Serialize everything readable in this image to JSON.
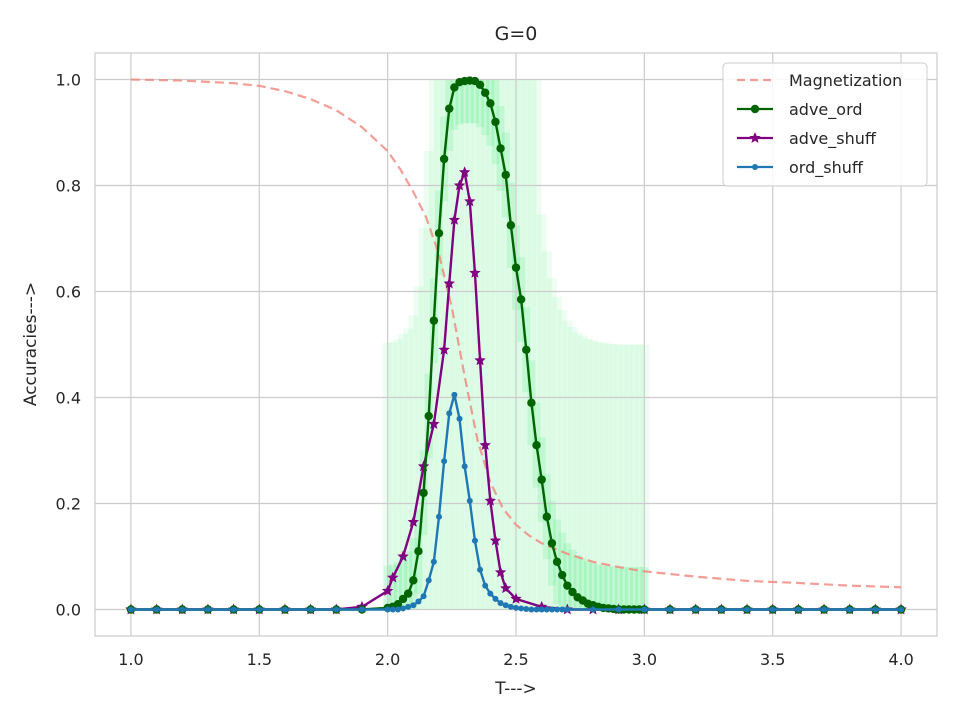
{
  "chart_data": {
    "type": "line",
    "title": "G=0",
    "xlabel": "T--->",
    "ylabel": "Accuracies--->",
    "xlim": [
      0.86,
      4.14
    ],
    "ylim": [
      -0.05,
      1.05
    ],
    "xticks": [
      1.0,
      1.5,
      2.0,
      2.5,
      3.0,
      3.5,
      4.0
    ],
    "xtick_labels": [
      "1.0",
      "1.5",
      "2.0",
      "2.5",
      "3.0",
      "3.5",
      "4.0"
    ],
    "yticks": [
      0.0,
      0.2,
      0.4,
      0.6,
      0.8,
      1.0
    ],
    "ytick_labels": [
      "0.0",
      "0.2",
      "0.4",
      "0.6",
      "0.8",
      "1.0"
    ],
    "grid": true,
    "legend_position": "top-right",
    "series": [
      {
        "name": "Magnetization",
        "color": "#f0857a",
        "style": "dashed",
        "marker": "none",
        "x": [
          1.0,
          1.2,
          1.4,
          1.5,
          1.6,
          1.7,
          1.8,
          1.9,
          2.0,
          2.05,
          2.1,
          2.15,
          2.2,
          2.25,
          2.3,
          2.35,
          2.4,
          2.45,
          2.5,
          2.55,
          2.6,
          2.7,
          2.8,
          2.9,
          3.0,
          3.2,
          3.4,
          3.6,
          3.8,
          4.0
        ],
        "y": [
          1.0,
          0.998,
          0.993,
          0.988,
          0.978,
          0.963,
          0.942,
          0.91,
          0.865,
          0.83,
          0.788,
          0.74,
          0.67,
          0.57,
          0.44,
          0.32,
          0.24,
          0.19,
          0.16,
          0.14,
          0.125,
          0.105,
          0.09,
          0.08,
          0.072,
          0.062,
          0.054,
          0.05,
          0.045,
          0.042
        ]
      },
      {
        "name": "adve_ord",
        "color": "#006400",
        "style": "solid",
        "marker": "circle",
        "x": [
          1.0,
          1.1,
          1.2,
          1.3,
          1.4,
          1.5,
          1.6,
          1.7,
          1.8,
          1.9,
          2.0,
          2.02,
          2.04,
          2.06,
          2.08,
          2.1,
          2.12,
          2.14,
          2.16,
          2.18,
          2.2,
          2.22,
          2.24,
          2.26,
          2.28,
          2.3,
          2.32,
          2.34,
          2.36,
          2.38,
          2.4,
          2.42,
          2.44,
          2.46,
          2.48,
          2.5,
          2.52,
          2.54,
          2.56,
          2.58,
          2.6,
          2.62,
          2.64,
          2.66,
          2.68,
          2.7,
          2.72,
          2.74,
          2.76,
          2.78,
          2.8,
          2.82,
          2.84,
          2.86,
          2.88,
          2.9,
          2.92,
          2.94,
          2.96,
          2.98,
          3.0,
          3.1,
          3.2,
          3.3,
          3.4,
          3.5,
          3.6,
          3.7,
          3.8,
          3.9,
          4.0
        ],
        "y": [
          0.0,
          0.0,
          0.0,
          0.0,
          0.0,
          0.0,
          0.0,
          0.0,
          0.0,
          0.0,
          0.003,
          0.005,
          0.01,
          0.02,
          0.03,
          0.055,
          0.11,
          0.22,
          0.365,
          0.545,
          0.71,
          0.85,
          0.945,
          0.985,
          0.995,
          0.997,
          0.998,
          0.997,
          0.99,
          0.975,
          0.955,
          0.92,
          0.87,
          0.82,
          0.725,
          0.645,
          0.585,
          0.49,
          0.39,
          0.31,
          0.245,
          0.175,
          0.125,
          0.09,
          0.065,
          0.045,
          0.033,
          0.023,
          0.017,
          0.011,
          0.008,
          0.005,
          0.003,
          0.002,
          0.001,
          0.0,
          0.0,
          0.0,
          0.0,
          0.0,
          0.0,
          0.0,
          0.0,
          0.0,
          0.0,
          0.0,
          0.0,
          0.0,
          0.0,
          0.0,
          0.0
        ]
      },
      {
        "name": "adve_shuff",
        "color": "#800080",
        "style": "solid",
        "marker": "star",
        "x": [
          1.0,
          1.1,
          1.2,
          1.3,
          1.4,
          1.5,
          1.6,
          1.7,
          1.8,
          1.9,
          2.0,
          2.02,
          2.06,
          2.1,
          2.14,
          2.18,
          2.22,
          2.24,
          2.26,
          2.28,
          2.3,
          2.32,
          2.34,
          2.36,
          2.38,
          2.4,
          2.42,
          2.44,
          2.46,
          2.5,
          2.6,
          2.7,
          2.8,
          2.9,
          3.0,
          3.1,
          3.2,
          3.3,
          3.4,
          3.5,
          3.6,
          3.7,
          3.8,
          3.9,
          4.0
        ],
        "y": [
          0.0,
          0.0,
          0.0,
          0.0,
          0.0,
          0.0,
          0.0,
          0.0,
          0.0,
          0.005,
          0.035,
          0.06,
          0.1,
          0.165,
          0.27,
          0.35,
          0.49,
          0.615,
          0.735,
          0.8,
          0.825,
          0.77,
          0.635,
          0.47,
          0.31,
          0.205,
          0.13,
          0.07,
          0.04,
          0.02,
          0.005,
          0.0,
          0.0,
          0.0,
          0.0,
          0.0,
          0.0,
          0.0,
          0.0,
          0.0,
          0.0,
          0.0,
          0.0,
          0.0,
          0.0
        ]
      },
      {
        "name": "ord_shuff",
        "color": "#1f77b4",
        "style": "solid",
        "marker": "point",
        "x": [
          1.0,
          1.1,
          1.2,
          1.3,
          1.4,
          1.5,
          1.6,
          1.7,
          1.8,
          1.9,
          2.0,
          2.02,
          2.04,
          2.06,
          2.08,
          2.1,
          2.12,
          2.14,
          2.16,
          2.18,
          2.2,
          2.22,
          2.24,
          2.26,
          2.28,
          2.3,
          2.32,
          2.34,
          2.36,
          2.38,
          2.4,
          2.42,
          2.44,
          2.46,
          2.48,
          2.5,
          2.52,
          2.54,
          2.56,
          2.58,
          2.6,
          2.62,
          2.64,
          2.66,
          2.68,
          2.7,
          2.8,
          2.9,
          3.0,
          3.1,
          3.2,
          3.3,
          3.4,
          3.5,
          3.6,
          3.7,
          3.8,
          3.9,
          4.0
        ],
        "y": [
          0.0,
          0.0,
          0.0,
          0.0,
          0.0,
          0.0,
          0.0,
          0.0,
          0.0,
          0.0,
          0.0,
          0.0,
          0.0,
          0.002,
          0.005,
          0.008,
          0.015,
          0.025,
          0.055,
          0.09,
          0.175,
          0.28,
          0.37,
          0.405,
          0.36,
          0.27,
          0.205,
          0.13,
          0.075,
          0.045,
          0.03,
          0.02,
          0.012,
          0.008,
          0.005,
          0.003,
          0.002,
          0.001,
          0.0,
          0.0,
          0.0,
          0.0,
          0.0,
          0.0,
          0.0,
          0.0,
          0.0,
          0.0,
          0.0,
          0.0,
          0.0,
          0.0,
          0.0,
          0.0,
          0.0,
          0.0,
          0.0,
          0.0,
          0.0
        ]
      }
    ]
  }
}
